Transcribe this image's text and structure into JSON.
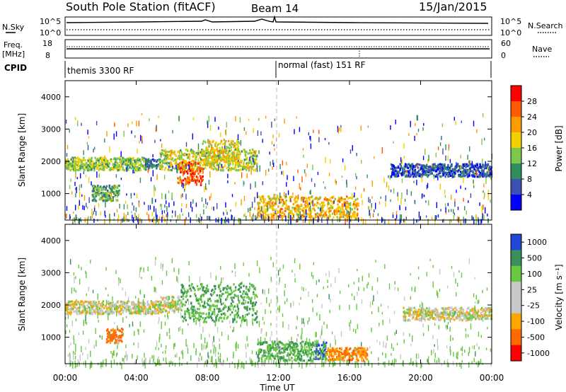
{
  "header": {
    "title": "South Pole Station (fitACF)",
    "beam": "Beam 14",
    "date": "15/Jan/2015"
  },
  "noise_panel": {
    "left_label": "N.Sky",
    "left_ticks": [
      "10^5",
      "10^0"
    ],
    "right_label": "N.Search",
    "right_ticks": [
      "10^5",
      "10^0"
    ]
  },
  "freq_panel": {
    "left_label_1": "Freq.",
    "left_label_2": "[MHz]",
    "left_ticks": [
      "18",
      "8"
    ],
    "right_label": "Nave",
    "right_ticks": [
      "60",
      "0"
    ]
  },
  "cpid": {
    "label": "CPID",
    "mode_1": "themis 3300 RF",
    "mode_2": "normal (fast) 151 RF"
  },
  "colors": {
    "power_scale": [
      "#0000ff",
      "#3e4fb5",
      "#2f8f5f",
      "#7cc84f",
      "#f2d000",
      "#ff9a00",
      "#ff5a00",
      "#ff0000"
    ],
    "velocity_scale": [
      "#ff0000",
      "#ff6a00",
      "#ffa500",
      "#c8c8c8",
      "#c8c8c8",
      "#68c842",
      "#3a8f5a",
      "#2148d8"
    ]
  },
  "chart_data": [
    {
      "type": "heatmap",
      "title": "Power",
      "ylabel": "Slant Range [km]",
      "xlabel": "",
      "y_ticks": [
        "4000",
        "3000",
        "2000",
        "1000"
      ],
      "ylim": [
        180,
        4500
      ],
      "colorbar_label": "Power [dB]",
      "colorbar_ticks": [
        "28",
        "24",
        "20",
        "16",
        "12",
        "8",
        "4"
      ],
      "colorbar_range": [
        0,
        32
      ],
      "echo_regions": [
        {
          "t0": 0.0,
          "t1": 4.5,
          "r0": 1750,
          "r1": 2150,
          "level": 14
        },
        {
          "t0": 4.5,
          "t1": 5.3,
          "r0": 1800,
          "r1": 2100,
          "level": 8
        },
        {
          "t0": 5.3,
          "t1": 10.8,
          "r0": 1750,
          "r1": 2400,
          "level": 16
        },
        {
          "t0": 6.3,
          "t1": 7.7,
          "r0": 1300,
          "r1": 2000,
          "level": 26
        },
        {
          "t0": 7.7,
          "t1": 9.8,
          "r0": 1900,
          "r1": 2700,
          "level": 18
        },
        {
          "t0": 1.5,
          "t1": 3.0,
          "r0": 800,
          "r1": 1300,
          "level": 12
        },
        {
          "t0": 10.8,
          "t1": 16.5,
          "r0": 250,
          "r1": 950,
          "level": 20
        },
        {
          "t0": 18.3,
          "t1": 24.0,
          "r0": 1550,
          "r1": 1950,
          "level": 6
        }
      ]
    },
    {
      "type": "heatmap",
      "title": "Velocity",
      "ylabel": "Slant Range [km]",
      "xlabel": "Time UT",
      "y_ticks": [
        "4000",
        "3000",
        "2000",
        "1000"
      ],
      "ylim": [
        180,
        4500
      ],
      "x_ticks": [
        "00:00",
        "04:00",
        "08:00",
        "12:00",
        "16:00",
        "20:00",
        "00:00"
      ],
      "xlim": [
        0,
        24
      ],
      "colorbar_label": "Velocity [m s⁻¹]",
      "colorbar_ticks": [
        "1000",
        "500",
        "100",
        "25",
        "-25",
        "-100",
        "-500",
        "-1000"
      ],
      "echo_regions": [
        {
          "t0": 0.0,
          "t1": 5.3,
          "r0": 1750,
          "r1": 2150,
          "velocity": 0
        },
        {
          "t0": 5.3,
          "t1": 6.5,
          "r0": 1800,
          "r1": 2300,
          "velocity": 0
        },
        {
          "t0": 6.5,
          "t1": 10.8,
          "r0": 1500,
          "r1": 2700,
          "velocity": 300
        },
        {
          "t0": 2.3,
          "t1": 3.2,
          "r0": 850,
          "r1": 1300,
          "velocity": -400
        },
        {
          "t0": 10.8,
          "t1": 14.0,
          "r0": 300,
          "r1": 900,
          "velocity": 300
        },
        {
          "t0": 14.0,
          "t1": 14.7,
          "r0": 350,
          "r1": 900,
          "velocity": 700
        },
        {
          "t0": 14.7,
          "t1": 17.0,
          "r0": 300,
          "r1": 700,
          "velocity": -300
        },
        {
          "t0": 19.0,
          "t1": 24.0,
          "r0": 1550,
          "r1": 1950,
          "velocity": 0
        }
      ]
    }
  ]
}
